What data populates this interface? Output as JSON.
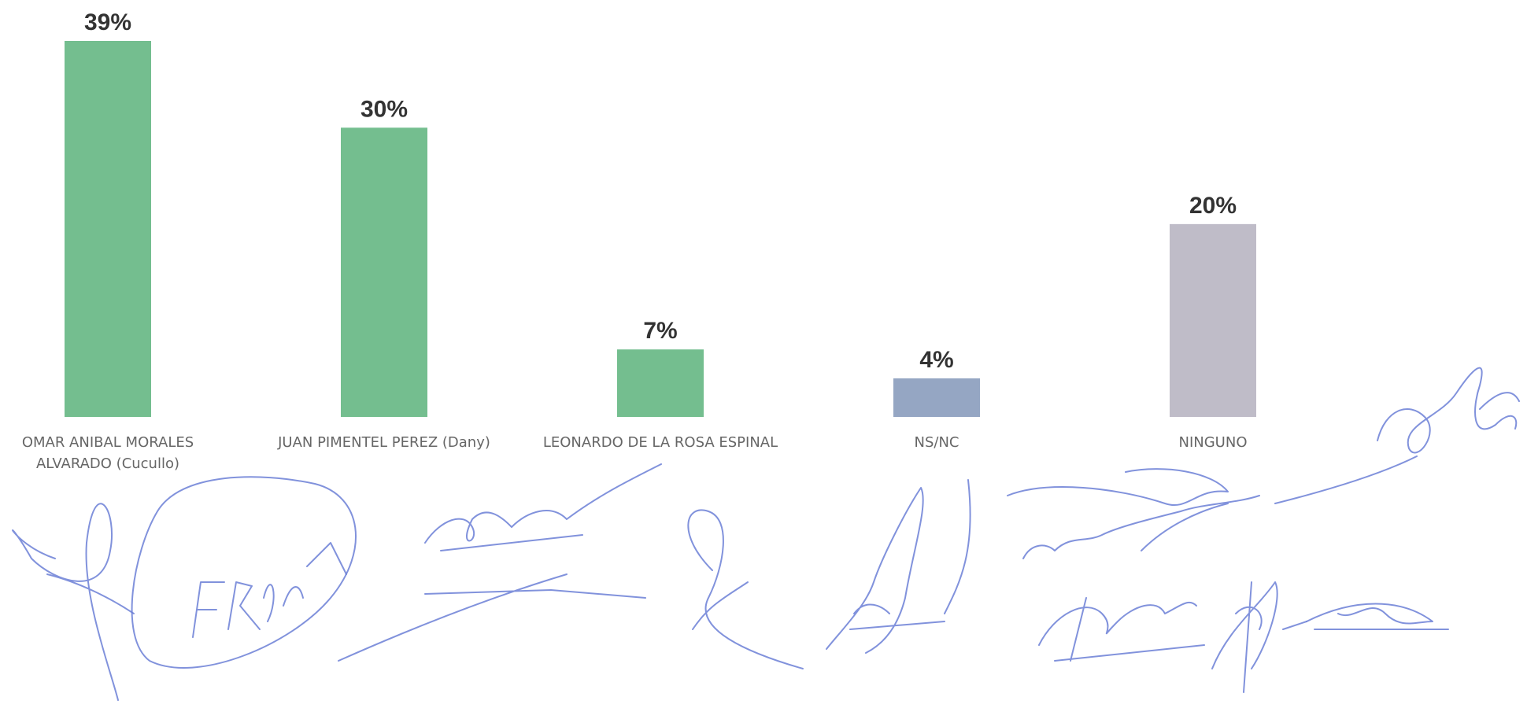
{
  "chart_data": {
    "type": "bar",
    "categories": [
      [
        "OMAR ANIBAL MORALES",
        "ALVARADO (Cucullo)"
      ],
      [
        "JUAN PIMENTEL PEREZ (Dany)"
      ],
      [
        "LEONARDO DE LA ROSA ESPINAL"
      ],
      [
        "NS/NC"
      ],
      [
        "NINGUNO"
      ]
    ],
    "values": [
      39,
      30,
      7,
      4,
      20
    ],
    "value_labels": [
      "39%",
      "30%",
      "7%",
      "4%",
      "20%"
    ],
    "bar_colors": [
      "#74be8f",
      "#74be8f",
      "#74be8f",
      "#95a6c3",
      "#bfbcc8"
    ],
    "ylim": [
      0,
      39
    ],
    "grid": false,
    "legend": "none"
  },
  "colors": {
    "signature_ink": "#6b7fd6"
  }
}
